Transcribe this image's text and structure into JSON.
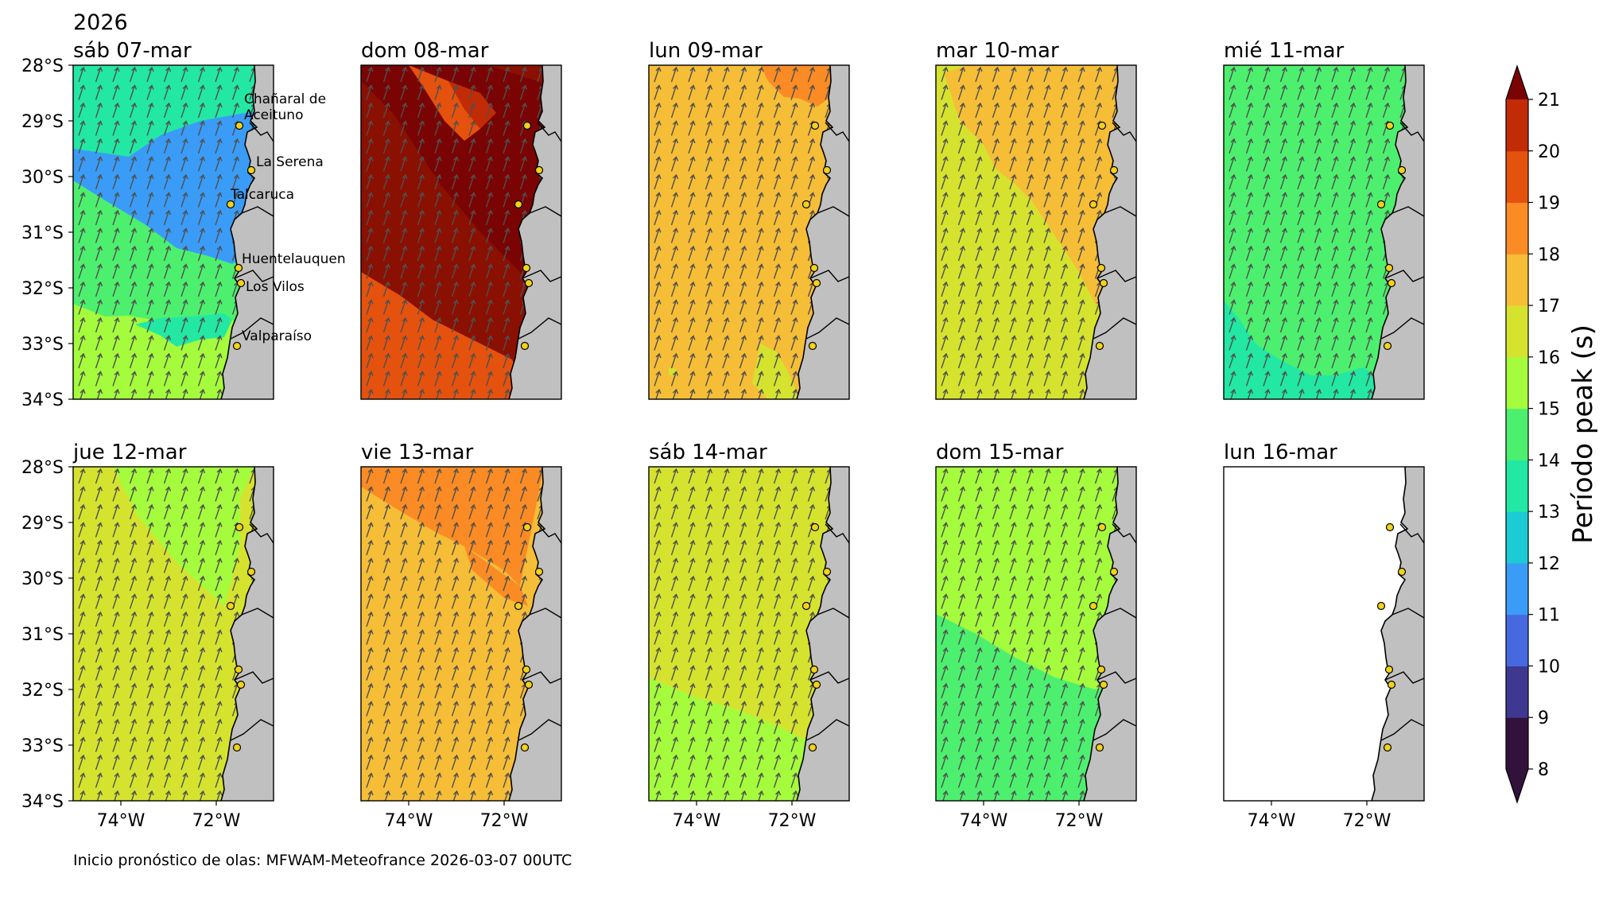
{
  "year": "2026",
  "footer": "Inicio pronóstico de olas: MFWAM-Meteofrance 2026-03-07 00UTC",
  "lat_ticks": [
    "28°S",
    "29°S",
    "30°S",
    "31°S",
    "32°S",
    "33°S",
    "34°S"
  ],
  "lon_ticks": [
    "74°W",
    "72°W"
  ],
  "colors": {
    "land": "#c0c0c0",
    "coast": "#000000",
    "marker_fill": "#f2d21a",
    "arrow": "#505050",
    "band_8_9": "#30123b",
    "band_9_10": "#3e3891",
    "band_10_11": "#4669e0",
    "band_11_12": "#3a9cf7",
    "band_12_13": "#1ccbd3",
    "band_13_14": "#22e8a4",
    "band_14_15": "#4df06e",
    "band_15_16": "#a4fc3c",
    "band_16_17": "#d5e32f",
    "band_17_18": "#f6bd37",
    "band_18_19": "#fb8b24",
    "band_19_20": "#e4520e",
    "band_20_21": "#c12b06",
    "band_over": "#8a1002",
    "band_top": "#7a0403"
  },
  "colorbar": {
    "title": "Período peak (s)",
    "levels": [
      "8",
      "9",
      "10",
      "11",
      "12",
      "13",
      "14",
      "15",
      "16",
      "17",
      "18",
      "19",
      "20",
      "21"
    ]
  },
  "places": [
    {
      "name": "Chañaral de",
      "name2": "Aceituno"
    },
    {
      "name": "La Serena"
    },
    {
      "name": "Talcaruca"
    },
    {
      "name": "Huentelauquen"
    },
    {
      "name": "Los Vilos"
    },
    {
      "name": "Valparaíso"
    }
  ],
  "panels": [
    {
      "title": "sáb 07-mar"
    },
    {
      "title": "dom 08-mar"
    },
    {
      "title": "lun 09-mar"
    },
    {
      "title": "mar 10-mar"
    },
    {
      "title": "mié 11-mar"
    },
    {
      "title": "jue 12-mar"
    },
    {
      "title": "vie 13-mar"
    },
    {
      "title": "sáb 14-mar"
    },
    {
      "title": "dom 15-mar"
    },
    {
      "title": "lun 16-mar"
    }
  ]
}
